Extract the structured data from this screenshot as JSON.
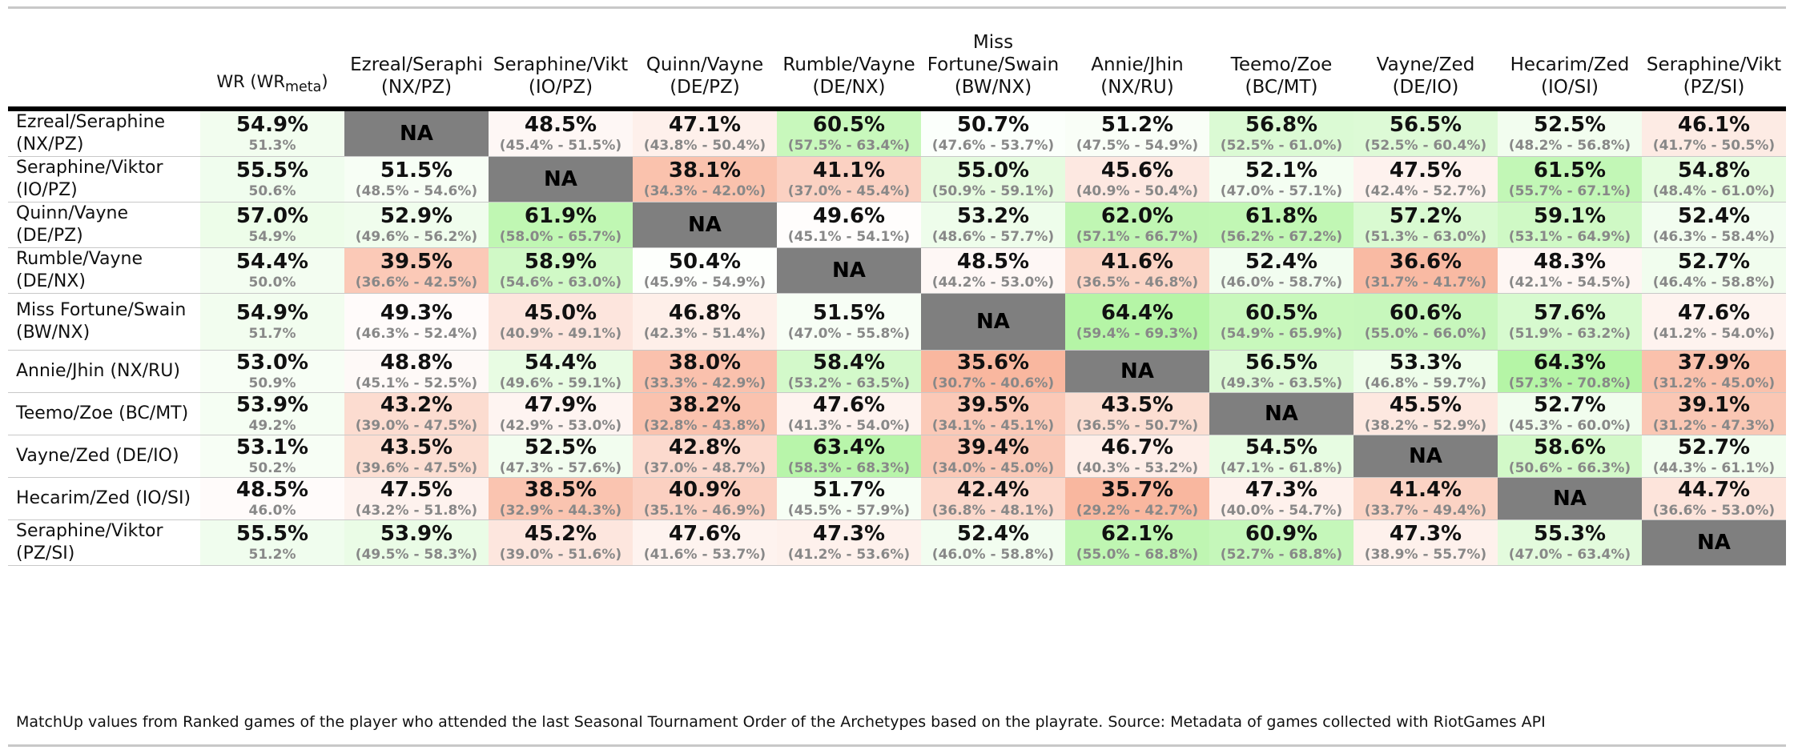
{
  "chart_data": {
    "type": "table",
    "wr_header": "WR (WR",
    "wr_header_sub": "meta",
    "wr_header_close": ")",
    "columns": [
      [
        "Ezreal/Seraphi",
        "(NX/PZ)"
      ],
      [
        "Seraphine/Vikt",
        "(IO/PZ)"
      ],
      [
        "Quinn/Vayne",
        "(DE/PZ)"
      ],
      [
        "Rumble/Vayne",
        "(DE/NX)"
      ],
      [
        "Miss",
        "Fortune/Swain",
        "(BW/NX)"
      ],
      [
        "Annie/Jhin",
        "(NX/RU)"
      ],
      [
        "Teemo/Zoe",
        "(BC/MT)"
      ],
      [
        "Vayne/Zed",
        "(DE/IO)"
      ],
      [
        "Hecarim/Zed",
        "(IO/SI)"
      ],
      [
        "Seraphine/Vikt",
        "(PZ/SI)"
      ]
    ],
    "rows": [
      {
        "label": "Ezreal/Seraphine (NX/PZ)",
        "wr": "54.9%",
        "wr_meta": "51.3%",
        "cells": [
          [
            "NA",
            ""
          ],
          [
            "48.5%",
            "(45.4% - 51.5%)"
          ],
          [
            "47.1%",
            "(43.8% - 50.4%)"
          ],
          [
            "60.5%",
            "(57.5% - 63.4%)"
          ],
          [
            "50.7%",
            "(47.6% - 53.7%)"
          ],
          [
            "51.2%",
            "(47.5% - 54.9%)"
          ],
          [
            "56.8%",
            "(52.5% - 61.0%)"
          ],
          [
            "56.5%",
            "(52.5% - 60.4%)"
          ],
          [
            "52.5%",
            "(48.2% - 56.8%)"
          ],
          [
            "46.1%",
            "(41.7% - 50.5%)"
          ]
        ]
      },
      {
        "label": "Seraphine/Viktor (IO/PZ)",
        "wr": "55.5%",
        "wr_meta": "50.6%",
        "cells": [
          [
            "51.5%",
            "(48.5% - 54.6%)"
          ],
          [
            "NA",
            ""
          ],
          [
            "38.1%",
            "(34.3% - 42.0%)"
          ],
          [
            "41.1%",
            "(37.0% - 45.4%)"
          ],
          [
            "55.0%",
            "(50.9% - 59.1%)"
          ],
          [
            "45.6%",
            "(40.9% - 50.4%)"
          ],
          [
            "52.1%",
            "(47.0% - 57.1%)"
          ],
          [
            "47.5%",
            "(42.4% - 52.7%)"
          ],
          [
            "61.5%",
            "(55.7% - 67.1%)"
          ],
          [
            "54.8%",
            "(48.4% - 61.0%)"
          ]
        ]
      },
      {
        "label": "Quinn/Vayne (DE/PZ)",
        "wr": "57.0%",
        "wr_meta": "54.9%",
        "cells": [
          [
            "52.9%",
            "(49.6% - 56.2%)"
          ],
          [
            "61.9%",
            "(58.0% - 65.7%)"
          ],
          [
            "NA",
            ""
          ],
          [
            "49.6%",
            "(45.1% - 54.1%)"
          ],
          [
            "53.2%",
            "(48.6% - 57.7%)"
          ],
          [
            "62.0%",
            "(57.1% - 66.7%)"
          ],
          [
            "61.8%",
            "(56.2% - 67.2%)"
          ],
          [
            "57.2%",
            "(51.3% - 63.0%)"
          ],
          [
            "59.1%",
            "(53.1% - 64.9%)"
          ],
          [
            "52.4%",
            "(46.3% - 58.4%)"
          ]
        ]
      },
      {
        "label": "Rumble/Vayne (DE/NX)",
        "wr": "54.4%",
        "wr_meta": "50.0%",
        "cells": [
          [
            "39.5%",
            "(36.6% - 42.5%)"
          ],
          [
            "58.9%",
            "(54.6% - 63.0%)"
          ],
          [
            "50.4%",
            "(45.9% - 54.9%)"
          ],
          [
            "NA",
            ""
          ],
          [
            "48.5%",
            "(44.2% - 53.0%)"
          ],
          [
            "41.6%",
            "(36.5% - 46.8%)"
          ],
          [
            "52.4%",
            "(46.0% - 58.7%)"
          ],
          [
            "36.6%",
            "(31.7% - 41.7%)"
          ],
          [
            "48.3%",
            "(42.1% - 54.5%)"
          ],
          [
            "52.7%",
            "(46.4% - 58.8%)"
          ]
        ]
      },
      {
        "label": "Miss Fortune/Swain (BW/NX)",
        "wr": "54.9%",
        "wr_meta": "51.7%",
        "cells": [
          [
            "49.3%",
            "(46.3% - 52.4%)"
          ],
          [
            "45.0%",
            "(40.9% - 49.1%)"
          ],
          [
            "46.8%",
            "(42.3% - 51.4%)"
          ],
          [
            "51.5%",
            "(47.0% - 55.8%)"
          ],
          [
            "NA",
            ""
          ],
          [
            "64.4%",
            "(59.4% - 69.3%)"
          ],
          [
            "60.5%",
            "(54.9% - 65.9%)"
          ],
          [
            "60.6%",
            "(55.0% - 66.0%)"
          ],
          [
            "57.6%",
            "(51.9% - 63.2%)"
          ],
          [
            "47.6%",
            "(41.2% - 54.0%)"
          ]
        ]
      },
      {
        "label": "Annie/Jhin (NX/RU)",
        "wr": "53.0%",
        "wr_meta": "50.9%",
        "cells": [
          [
            "48.8%",
            "(45.1% - 52.5%)"
          ],
          [
            "54.4%",
            "(49.6% - 59.1%)"
          ],
          [
            "38.0%",
            "(33.3% - 42.9%)"
          ],
          [
            "58.4%",
            "(53.2% - 63.5%)"
          ],
          [
            "35.6%",
            "(30.7% - 40.6%)"
          ],
          [
            "NA",
            ""
          ],
          [
            "56.5%",
            "(49.3% - 63.5%)"
          ],
          [
            "53.3%",
            "(46.8% - 59.7%)"
          ],
          [
            "64.3%",
            "(57.3% - 70.8%)"
          ],
          [
            "37.9%",
            "(31.2% - 45.0%)"
          ]
        ]
      },
      {
        "label": "Teemo/Zoe (BC/MT)",
        "wr": "53.9%",
        "wr_meta": "49.2%",
        "cells": [
          [
            "43.2%",
            "(39.0% - 47.5%)"
          ],
          [
            "47.9%",
            "(42.9% - 53.0%)"
          ],
          [
            "38.2%",
            "(32.8% - 43.8%)"
          ],
          [
            "47.6%",
            "(41.3% - 54.0%)"
          ],
          [
            "39.5%",
            "(34.1% - 45.1%)"
          ],
          [
            "43.5%",
            "(36.5% - 50.7%)"
          ],
          [
            "NA",
            ""
          ],
          [
            "45.5%",
            "(38.2% - 52.9%)"
          ],
          [
            "52.7%",
            "(45.3% - 60.0%)"
          ],
          [
            "39.1%",
            "(31.2% - 47.3%)"
          ]
        ]
      },
      {
        "label": "Vayne/Zed (DE/IO)",
        "wr": "53.1%",
        "wr_meta": "50.2%",
        "cells": [
          [
            "43.5%",
            "(39.6% - 47.5%)"
          ],
          [
            "52.5%",
            "(47.3% - 57.6%)"
          ],
          [
            "42.8%",
            "(37.0% - 48.7%)"
          ],
          [
            "63.4%",
            "(58.3% - 68.3%)"
          ],
          [
            "39.4%",
            "(34.0% - 45.0%)"
          ],
          [
            "46.7%",
            "(40.3% - 53.2%)"
          ],
          [
            "54.5%",
            "(47.1% - 61.8%)"
          ],
          [
            "NA",
            ""
          ],
          [
            "58.6%",
            "(50.6% - 66.3%)"
          ],
          [
            "52.7%",
            "(44.3% - 61.1%)"
          ]
        ]
      },
      {
        "label": "Hecarim/Zed (IO/SI)",
        "wr": "48.5%",
        "wr_meta": "46.0%",
        "cells": [
          [
            "47.5%",
            "(43.2% - 51.8%)"
          ],
          [
            "38.5%",
            "(32.9% - 44.3%)"
          ],
          [
            "40.9%",
            "(35.1% - 46.9%)"
          ],
          [
            "51.7%",
            "(45.5% - 57.9%)"
          ],
          [
            "42.4%",
            "(36.8% - 48.1%)"
          ],
          [
            "35.7%",
            "(29.2% - 42.7%)"
          ],
          [
            "47.3%",
            "(40.0% - 54.7%)"
          ],
          [
            "41.4%",
            "(33.7% - 49.4%)"
          ],
          [
            "NA",
            ""
          ],
          [
            "44.7%",
            "(36.6% - 53.0%)"
          ]
        ]
      },
      {
        "label": "Seraphine/Viktor (PZ/SI)",
        "wr": "55.5%",
        "wr_meta": "51.2%",
        "cells": [
          [
            "53.9%",
            "(49.5% - 58.3%)"
          ],
          [
            "45.2%",
            "(39.0% - 51.6%)"
          ],
          [
            "47.6%",
            "(41.6% - 53.7%)"
          ],
          [
            "47.3%",
            "(41.2% - 53.6%)"
          ],
          [
            "52.4%",
            "(46.0% - 58.8%)"
          ],
          [
            "62.1%",
            "(55.0% - 68.8%)"
          ],
          [
            "60.9%",
            "(52.7% - 68.8%)"
          ],
          [
            "47.3%",
            "(38.9% - 55.7%)"
          ],
          [
            "55.3%",
            "(47.0% - 63.4%)"
          ],
          [
            "NA",
            ""
          ]
        ]
      }
    ],
    "footnote": "MatchUp values from Ranked games of the player who attended the last Seasonal Tournament Order of the Archetypes based on the playrate. Source: Metadata of games collected with RiotGames API",
    "colors": {
      "positive": "#b5f5a6",
      "neutral": "#ffffff",
      "negative": "#f9b79f",
      "na": "#7f7f7f"
    }
  }
}
